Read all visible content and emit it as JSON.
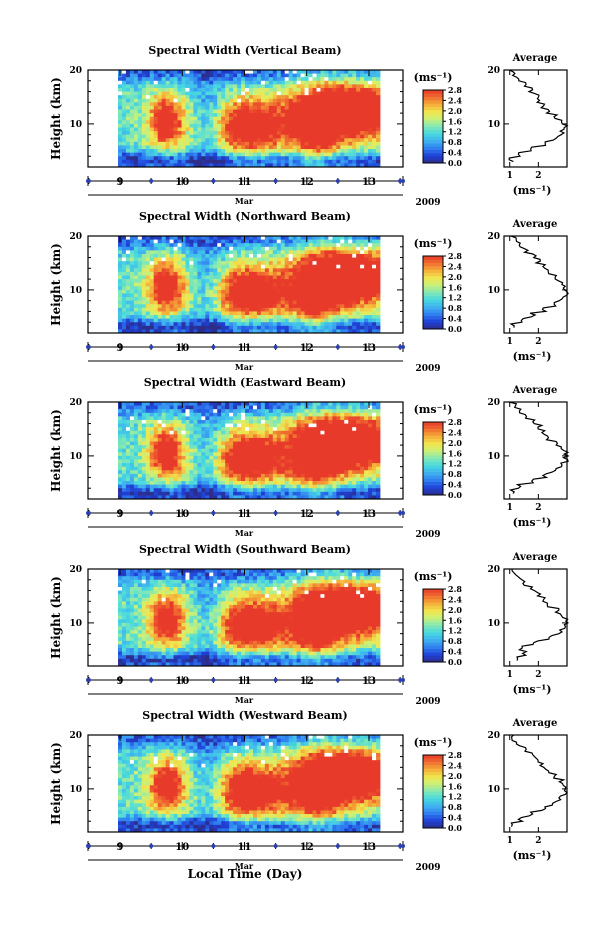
{
  "figure": {
    "xlabel": "Local Time (Day)",
    "month_label": "Mar",
    "year_label": "2009",
    "ylabel": "Height (km)",
    "colorbar_unit": "(ms⁻¹)",
    "colorbar_ticks": [
      "0.0",
      "0.4",
      "0.8",
      "1.2",
      "1.6",
      "2.0",
      "2.4",
      "2.8"
    ],
    "avg_title": "Average",
    "avg_xlabel": "(ms⁻¹)"
  },
  "colors": {
    "scale": [
      "#2d2d8a",
      "#1e3fd6",
      "#2f7ef0",
      "#3fb0f0",
      "#46d8e0",
      "#7fe8b8",
      "#c8f07a",
      "#f0e850",
      "#f5b03a",
      "#f07030",
      "#e83a2a"
    ]
  },
  "chart_data": [
    {
      "type": "heatmap",
      "title": "Spectral Width (Vertical Beam)",
      "xlabel": "Local Time (Day)",
      "ylabel": "Height (km)",
      "x_ticks": [
        9,
        10,
        11,
        12,
        13
      ],
      "xlim": [
        8.5,
        13.5
      ],
      "y_ticks": [
        10,
        20
      ],
      "ylim": [
        2,
        20
      ],
      "colorbar": {
        "label": "(ms⁻¹)",
        "min": 0.0,
        "max": 2.8,
        "ticks": [
          0.0,
          0.4,
          0.8,
          1.2,
          1.6,
          2.0,
          2.4,
          2.8
        ]
      },
      "average_profile": {
        "title": "Average",
        "xlabel": "(ms⁻¹)",
        "x_ticks": [
          1,
          2
        ],
        "xlim": [
          0.8,
          3.0
        ],
        "height": [
          3,
          4,
          5,
          6,
          7,
          8,
          9,
          10,
          11,
          12,
          13,
          14,
          15,
          16,
          17,
          18,
          19,
          20
        ],
        "width": [
          1.05,
          1.3,
          1.7,
          2.2,
          2.6,
          2.85,
          2.95,
          2.85,
          2.6,
          2.35,
          2.15,
          2.05,
          1.95,
          1.75,
          1.5,
          1.3,
          1.15,
          1.05
        ]
      }
    },
    {
      "type": "heatmap",
      "title": "Spectral Width (Northward Beam)",
      "xlabel": "Local Time (Day)",
      "ylabel": "Height (km)",
      "x_ticks": [
        9,
        10,
        11,
        12,
        13
      ],
      "xlim": [
        8.5,
        13.5
      ],
      "y_ticks": [
        10,
        20
      ],
      "ylim": [
        2,
        20
      ],
      "colorbar": {
        "label": "(ms⁻¹)",
        "min": 0.0,
        "max": 2.8,
        "ticks": [
          0.0,
          0.4,
          0.8,
          1.2,
          1.6,
          2.0,
          2.4,
          2.8
        ]
      },
      "average_profile": {
        "title": "Average",
        "xlabel": "(ms⁻¹)",
        "x_ticks": [
          1,
          2
        ],
        "xlim": [
          0.8,
          3.0
        ],
        "height": [
          3,
          4,
          5,
          6,
          7,
          8,
          9,
          10,
          11,
          12,
          13,
          14,
          15,
          16,
          17,
          18,
          19,
          20
        ],
        "width": [
          1.1,
          1.4,
          1.8,
          2.2,
          2.55,
          2.8,
          2.95,
          2.95,
          2.8,
          2.55,
          2.3,
          2.15,
          2.0,
          1.85,
          1.6,
          1.4,
          1.2,
          1.05
        ]
      }
    },
    {
      "type": "heatmap",
      "title": "Spectral Width (Eastward Beam)",
      "xlabel": "Local Time (Day)",
      "ylabel": "Height (km)",
      "x_ticks": [
        9,
        10,
        11,
        12,
        13
      ],
      "xlim": [
        8.5,
        13.5
      ],
      "y_ticks": [
        10,
        20
      ],
      "ylim": [
        2,
        20
      ],
      "colorbar": {
        "label": "(ms⁻¹)",
        "min": 0.0,
        "max": 2.8,
        "ticks": [
          0.0,
          0.4,
          0.8,
          1.2,
          1.6,
          2.0,
          2.4,
          2.8
        ]
      },
      "average_profile": {
        "title": "Average",
        "xlabel": "(ms⁻¹)",
        "x_ticks": [
          1,
          2
        ],
        "xlim": [
          0.8,
          3.0
        ],
        "height": [
          3,
          4,
          5,
          6,
          7,
          8,
          9,
          10,
          11,
          12,
          13,
          14,
          15,
          16,
          17,
          18,
          19,
          20
        ],
        "width": [
          1.1,
          1.35,
          1.75,
          2.2,
          2.55,
          2.8,
          2.95,
          2.95,
          2.8,
          2.6,
          2.35,
          2.2,
          2.05,
          1.8,
          1.55,
          1.35,
          1.15,
          1.05
        ]
      }
    },
    {
      "type": "heatmap",
      "title": "Spectral Width (Southward Beam)",
      "xlabel": "Local Time (Day)",
      "ylabel": "Height (km)",
      "x_ticks": [
        9,
        10,
        11,
        12,
        13
      ],
      "xlim": [
        8.5,
        13.5
      ],
      "y_ticks": [
        10,
        20
      ],
      "ylim": [
        2,
        20
      ],
      "colorbar": {
        "label": "(ms⁻¹)",
        "min": 0.0,
        "max": 2.8,
        "ticks": [
          0.0,
          0.4,
          0.8,
          1.2,
          1.6,
          2.0,
          2.4,
          2.8
        ]
      },
      "average_profile": {
        "title": "Average",
        "xlabel": "(ms⁻¹)",
        "x_ticks": [
          1,
          2
        ],
        "xlim": [
          0.8,
          3.0
        ],
        "height": [
          3,
          4,
          5,
          6,
          7,
          8,
          9,
          10,
          11,
          12,
          13,
          14,
          15,
          16,
          17,
          18,
          19,
          20
        ],
        "width": [
          1.2,
          1.5,
          1.35,
          1.9,
          2.4,
          2.75,
          2.9,
          2.95,
          2.85,
          2.65,
          2.4,
          2.2,
          2.0,
          1.8,
          1.55,
          1.35,
          1.15,
          1.05
        ]
      }
    },
    {
      "type": "heatmap",
      "title": "Spectral Width (Westward Beam)",
      "xlabel": "Local Time (Day)",
      "ylabel": "Height (km)",
      "x_ticks": [
        9,
        10,
        11,
        12,
        13
      ],
      "xlim": [
        8.5,
        13.5
      ],
      "y_ticks": [
        10,
        20
      ],
      "ylim": [
        2,
        20
      ],
      "colorbar": {
        "label": "(ms⁻¹)",
        "min": 0.0,
        "max": 2.8,
        "ticks": [
          0.0,
          0.4,
          0.8,
          1.2,
          1.6,
          2.0,
          2.4,
          2.8
        ]
      },
      "average_profile": {
        "title": "Average",
        "xlabel": "(ms⁻¹)",
        "x_ticks": [
          1,
          2
        ],
        "xlim": [
          0.8,
          3.0
        ],
        "height": [
          3,
          4,
          5,
          6,
          7,
          8,
          9,
          10,
          11,
          12,
          13,
          14,
          15,
          16,
          17,
          18,
          19,
          20
        ],
        "width": [
          1.1,
          1.35,
          1.75,
          2.2,
          2.55,
          2.8,
          2.95,
          2.95,
          2.8,
          2.55,
          2.3,
          2.15,
          2.0,
          1.8,
          1.55,
          1.3,
          1.15,
          1.05
        ]
      }
    }
  ]
}
